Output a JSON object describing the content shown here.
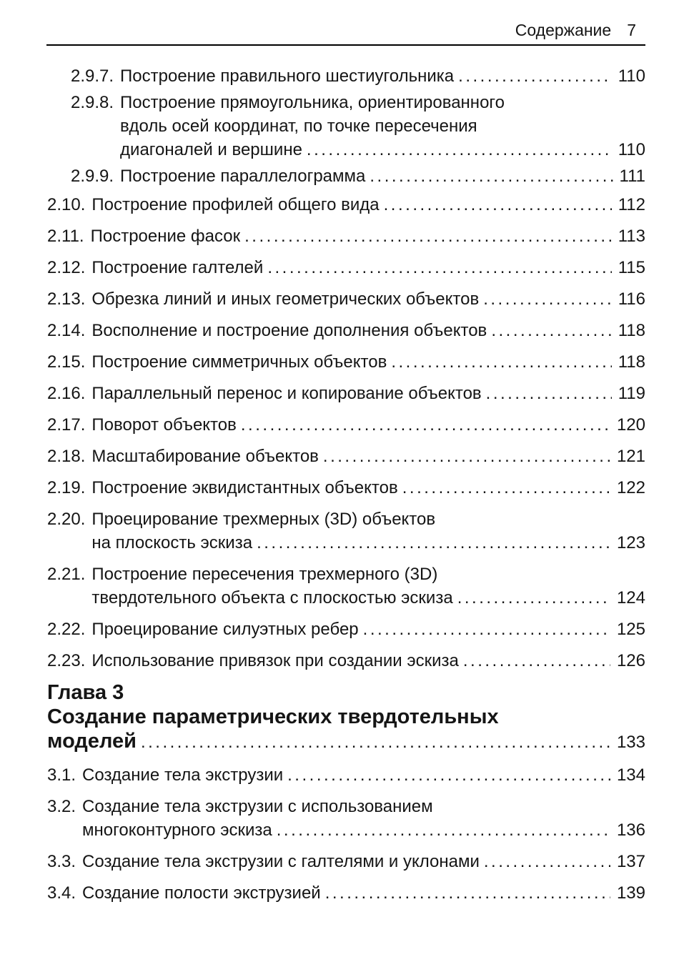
{
  "page": {
    "background_color": "#ffffff",
    "text_color": "#151515"
  },
  "header": {
    "title": "Содержание",
    "page_number": "7"
  },
  "toc": {
    "entries": [
      {
        "type": "sub",
        "num": "2.9.7.",
        "lines": [
          "Построение правильного шестиугольника"
        ],
        "page": "110"
      },
      {
        "type": "sub",
        "num": "2.9.8.",
        "lines": [
          "Построение прямоугольника, ориентированного",
          "вдоль осей координат, по точке пересечения",
          "диагоналей и вершине"
        ],
        "page": "110"
      },
      {
        "type": "sub",
        "num": "2.9.9.",
        "lines": [
          "Построение параллелограмма"
        ],
        "page": "111"
      },
      {
        "type": "main",
        "num": "2.10.",
        "lines": [
          "Построение профилей общего вида"
        ],
        "page": "112"
      },
      {
        "type": "main",
        "num": "2.11.",
        "lines": [
          "Построение фасок"
        ],
        "page": "113"
      },
      {
        "type": "main",
        "num": "2.12.",
        "lines": [
          "Построение галтелей"
        ],
        "page": "115"
      },
      {
        "type": "main",
        "num": "2.13.",
        "lines": [
          "Обрезка линий и иных геометрических объектов"
        ],
        "page": "116"
      },
      {
        "type": "main",
        "num": "2.14.",
        "lines": [
          "Восполнение и построение дополнения объектов"
        ],
        "page": "118"
      },
      {
        "type": "main",
        "num": "2.15.",
        "lines": [
          "Построение симметричных объектов"
        ],
        "page": "118"
      },
      {
        "type": "main",
        "num": "2.16.",
        "lines": [
          "Параллельный перенос и копирование объектов"
        ],
        "page": "119"
      },
      {
        "type": "main",
        "num": "2.17.",
        "lines": [
          "Поворот объектов"
        ],
        "page": "120"
      },
      {
        "type": "main",
        "num": "2.18.",
        "lines": [
          "Масштабирование объектов"
        ],
        "page": "121"
      },
      {
        "type": "main",
        "num": "2.19.",
        "lines": [
          "Построение эквидистантных объектов"
        ],
        "page": "122"
      },
      {
        "type": "main",
        "num": "2.20.",
        "lines": [
          "Проецирование трехмерных (3D) объектов",
          "на плоскость эскиза"
        ],
        "page": "123"
      },
      {
        "type": "main",
        "num": "2.21.",
        "lines": [
          "Построение пересечения трехмерного (3D)",
          "твердотельного объекта с плоскостью эскиза"
        ],
        "page": "124"
      },
      {
        "type": "main",
        "num": "2.22.",
        "lines": [
          "Проецирование силуэтных ребер"
        ],
        "page": "125"
      },
      {
        "type": "main",
        "num": "2.23.",
        "lines": [
          "Использование привязок при создании эскиза"
        ],
        "page": "126"
      },
      {
        "type": "chapter",
        "num": null,
        "lines": [
          "Глава 3",
          "Создание параметрических твердотельных",
          "моделей"
        ],
        "page": "133"
      },
      {
        "type": "main",
        "num": "3.1.",
        "lines": [
          "Создание тела экструзии"
        ],
        "page": "134"
      },
      {
        "type": "main",
        "num": "3.2.",
        "lines": [
          "Создание тела экструзии с использованием",
          "многоконтурного эскиза"
        ],
        "page": "136"
      },
      {
        "type": "main",
        "num": "3.3.",
        "lines": [
          "Создание тела экструзии с галтелями и уклонами"
        ],
        "page": "137"
      },
      {
        "type": "main",
        "num": "3.4.",
        "lines": [
          "Создание полости экструзией"
        ],
        "page": "139"
      }
    ]
  }
}
